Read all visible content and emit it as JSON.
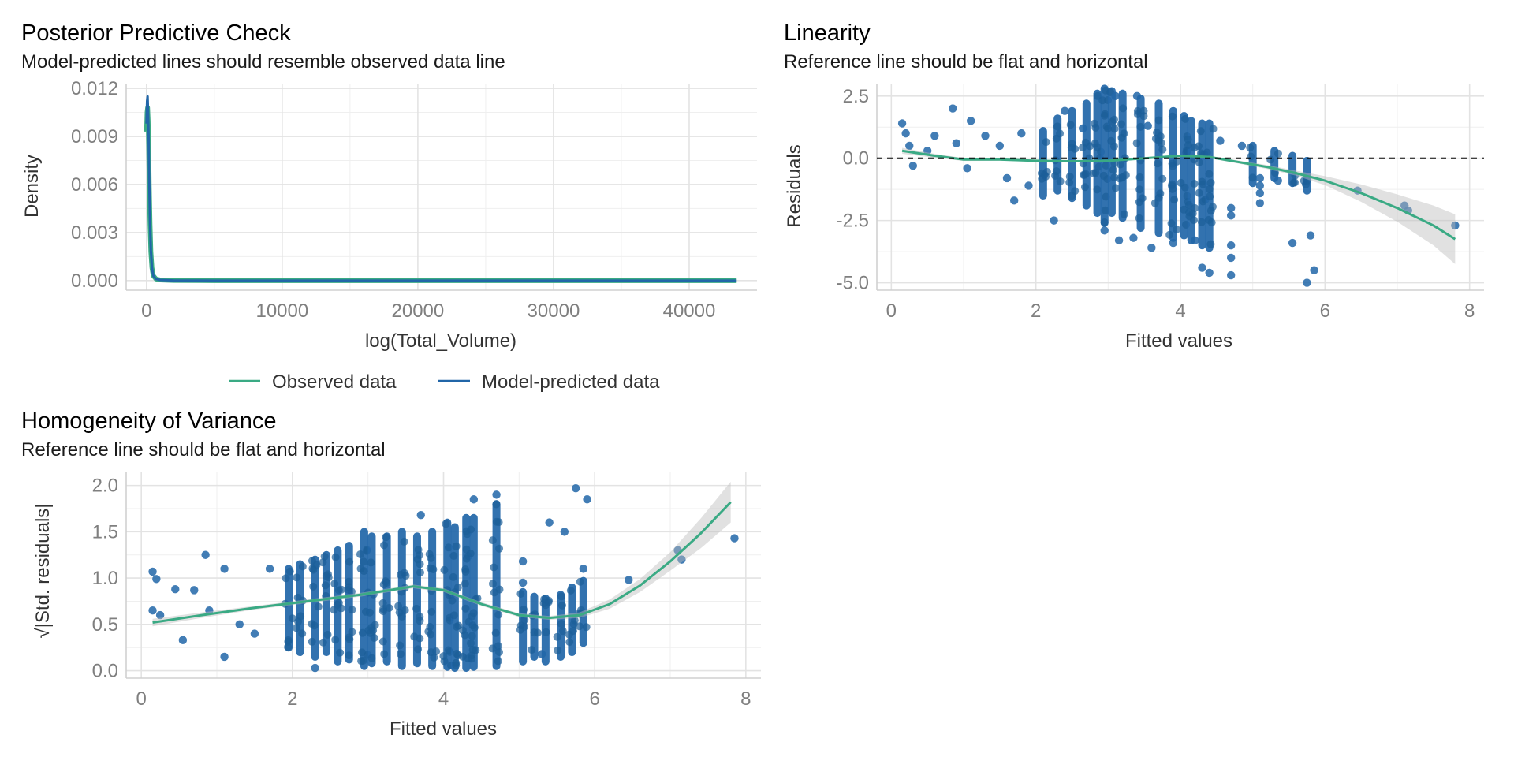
{
  "colors": {
    "observed": "#3aaa84",
    "predicted": "#2166a8",
    "point": "#2166a8",
    "smooth": "#3aaa84",
    "band": "#bdbdbd",
    "reference": "#000000"
  },
  "chart_data": [
    {
      "id": "ppc",
      "type": "line",
      "title": "Posterior Predictive Check",
      "subtitle": "Model-predicted lines should resemble observed data line",
      "xlabel": "log(Total_Volume)",
      "ylabel": "Density",
      "xlim": [
        -1500,
        45000
      ],
      "ylim": [
        -0.0006,
        0.0123
      ],
      "xticks": [
        0,
        10000,
        20000,
        30000,
        40000
      ],
      "xtick_labels": [
        "0",
        "10000",
        "20000",
        "30000",
        "40000"
      ],
      "yticks": [
        0.0,
        0.003,
        0.006,
        0.009,
        0.012
      ],
      "ytick_labels": [
        "0.000",
        "0.003",
        "0.006",
        "0.009",
        "0.012"
      ],
      "grid": true,
      "legend": {
        "position": "bottom",
        "items": [
          {
            "label": "Observed data",
            "series": "observed"
          },
          {
            "label": "Model-predicted data",
            "series": "predicted"
          }
        ]
      },
      "series": [
        {
          "name": "Observed data",
          "color_key": "observed",
          "x": [
            0,
            40,
            80,
            120,
            160,
            200,
            260,
            320,
            400,
            500,
            700,
            1000,
            2000,
            5000,
            10000,
            20000,
            30000,
            43500
          ],
          "y": [
            0.0093,
            0.0105,
            0.0108,
            0.01,
            0.0085,
            0.006,
            0.0035,
            0.0018,
            0.0008,
            0.0003,
            0.0001,
            4e-05,
            1e-05,
            0.0,
            0.0,
            0.0,
            0.0,
            0.0
          ]
        },
        {
          "name": "Model-predicted data",
          "color_key": "predicted",
          "x": [
            0,
            40,
            80,
            120,
            160,
            200,
            260,
            320,
            400,
            500,
            700,
            1000,
            2000,
            5000,
            10000,
            20000,
            30000,
            43500
          ],
          "y": [
            0.0098,
            0.0112,
            0.0115,
            0.0104,
            0.0088,
            0.0062,
            0.0036,
            0.0019,
            0.0008,
            0.0003,
            0.0001,
            4e-05,
            1e-05,
            0.0,
            0.0,
            0.0,
            0.0,
            0.0
          ]
        }
      ]
    },
    {
      "id": "linearity",
      "type": "scatter",
      "title": "Linearity",
      "subtitle": "Reference line should be flat and horizontal",
      "xlabel": "Fitted values",
      "ylabel": "Residuals",
      "xlim": [
        -0.2,
        8.2
      ],
      "ylim": [
        -5.3,
        3.0
      ],
      "xticks": [
        0,
        2,
        4,
        6,
        8
      ],
      "xtick_labels": [
        "0",
        "2",
        "4",
        "6",
        "8"
      ],
      "yticks": [
        -5.0,
        -2.5,
        0.0,
        2.5
      ],
      "ytick_labels": [
        "-5.0",
        "-2.5",
        "0.0",
        "2.5"
      ],
      "grid": true,
      "reference_y": 0,
      "points": [
        {
          "x": 0.15,
          "y": 1.4
        },
        {
          "x": 0.2,
          "y": 1.0
        },
        {
          "x": 0.25,
          "y": 0.5
        },
        {
          "x": 0.3,
          "y": -0.3
        },
        {
          "x": 0.5,
          "y": 0.3
        },
        {
          "x": 0.6,
          "y": 0.9
        },
        {
          "x": 0.85,
          "y": 2.0
        },
        {
          "x": 0.9,
          "y": 0.6
        },
        {
          "x": 1.05,
          "y": -0.4
        },
        {
          "x": 1.1,
          "y": 1.5
        },
        {
          "x": 1.3,
          "y": 0.9
        },
        {
          "x": 1.5,
          "y": 0.5
        },
        {
          "x": 1.6,
          "y": -0.8
        },
        {
          "x": 1.7,
          "y": -1.7
        },
        {
          "x": 1.8,
          "y": 1.0
        },
        {
          "x": 1.9,
          "y": -1.1
        },
        {
          "x": 2.25,
          "y": -2.5
        },
        {
          "x": 2.95,
          "y": -2.9
        },
        {
          "x": 3.15,
          "y": -3.3
        },
        {
          "x": 3.35,
          "y": -3.2
        },
        {
          "x": 3.6,
          "y": -3.6
        },
        {
          "x": 3.9,
          "y": -3.4
        },
        {
          "x": 4.2,
          "y": -3.3
        },
        {
          "x": 4.3,
          "y": -4.4
        },
        {
          "x": 4.4,
          "y": -4.6
        },
        {
          "x": 4.7,
          "y": -4.7
        },
        {
          "x": 4.7,
          "y": -4.0
        },
        {
          "x": 4.7,
          "y": -3.5
        },
        {
          "x": 4.7,
          "y": -2.3
        },
        {
          "x": 4.7,
          "y": -2.0
        },
        {
          "x": 5.1,
          "y": -1.8
        },
        {
          "x": 5.1,
          "y": -1.4
        },
        {
          "x": 5.1,
          "y": -1.1
        },
        {
          "x": 5.1,
          "y": -0.8
        },
        {
          "x": 5.35,
          "y": -0.9
        },
        {
          "x": 5.55,
          "y": -3.4
        },
        {
          "x": 5.75,
          "y": -5.0
        },
        {
          "x": 5.8,
          "y": -3.1
        },
        {
          "x": 5.85,
          "y": -4.5
        },
        {
          "x": 6.45,
          "y": -1.3
        },
        {
          "x": 7.1,
          "y": -1.9
        },
        {
          "x": 7.15,
          "y": -2.1
        },
        {
          "x": 7.8,
          "y": -2.7
        },
        {
          "x": 2.4,
          "y": 1.9
        },
        {
          "x": 2.65,
          "y": 1.2
        },
        {
          "x": 3.1,
          "y": 2.5
        },
        {
          "x": 3.4,
          "y": 2.5
        },
        {
          "x": 3.55,
          "y": 1.3
        },
        {
          "x": 4.55,
          "y": 0.7
        },
        {
          "x": 4.85,
          "y": 0.5
        }
      ],
      "vertical_clusters": [
        {
          "x": 2.1,
          "ymin": -1.5,
          "ymax": 1.1
        },
        {
          "x": 2.3,
          "ymin": -1.3,
          "ymax": 1.6
        },
        {
          "x": 2.5,
          "ymin": -1.6,
          "ymax": 1.9
        },
        {
          "x": 2.7,
          "ymin": -1.9,
          "ymax": 2.2
        },
        {
          "x": 2.85,
          "ymin": -2.2,
          "ymax": 2.6
        },
        {
          "x": 2.95,
          "ymin": -2.6,
          "ymax": 2.8
        },
        {
          "x": 3.05,
          "ymin": -2.2,
          "ymax": 2.7
        },
        {
          "x": 3.2,
          "ymin": -2.4,
          "ymax": 2.6
        },
        {
          "x": 3.45,
          "ymin": -2.8,
          "ymax": 2.4
        },
        {
          "x": 3.7,
          "ymin": -3.0,
          "ymax": 2.2
        },
        {
          "x": 3.9,
          "ymin": -3.2,
          "ymax": 1.9
        },
        {
          "x": 4.05,
          "ymin": -3.1,
          "ymax": 1.7
        },
        {
          "x": 4.15,
          "ymin": -3.3,
          "ymax": 1.5
        },
        {
          "x": 4.3,
          "ymin": -3.5,
          "ymax": 1.4
        },
        {
          "x": 4.4,
          "ymin": -3.6,
          "ymax": 1.4
        },
        {
          "x": 5.0,
          "ymin": -1.0,
          "ymax": 0.5
        },
        {
          "x": 5.3,
          "ymin": -0.8,
          "ymax": 0.3
        },
        {
          "x": 5.55,
          "ymin": -1.0,
          "ymax": 0.1
        },
        {
          "x": 5.75,
          "ymin": -1.3,
          "ymax": -0.1
        }
      ],
      "smooth": {
        "x": [
          0.15,
          0.6,
          1.0,
          1.5,
          2.0,
          2.5,
          3.0,
          3.5,
          4.0,
          4.4,
          4.8,
          5.2,
          5.6,
          6.0,
          6.5,
          7.0,
          7.5,
          7.8
        ],
        "y": [
          0.3,
          0.1,
          -0.05,
          -0.05,
          -0.1,
          -0.12,
          -0.1,
          0.0,
          0.1,
          0.05,
          -0.15,
          -0.35,
          -0.6,
          -0.9,
          -1.4,
          -2.0,
          -2.7,
          -3.25
        ],
        "se": [
          0.12,
          0.08,
          0.06,
          0.05,
          0.04,
          0.04,
          0.04,
          0.04,
          0.04,
          0.05,
          0.06,
          0.08,
          0.1,
          0.18,
          0.35,
          0.55,
          0.8,
          1.0
        ]
      }
    },
    {
      "id": "homogeneity",
      "type": "scatter",
      "title": "Homogeneity of Variance",
      "subtitle": "Reference line should be flat and horizontal",
      "xlabel": "Fitted values",
      "ylabel": "√|Std. residuals|",
      "xlim": [
        -0.2,
        8.2
      ],
      "ylim": [
        -0.08,
        2.15
      ],
      "xticks": [
        0,
        2,
        4,
        6,
        8
      ],
      "xtick_labels": [
        "0",
        "2",
        "4",
        "6",
        "8"
      ],
      "yticks": [
        0.0,
        0.5,
        1.0,
        1.5,
        2.0
      ],
      "ytick_labels": [
        "0.0",
        "0.5",
        "1.0",
        "1.5",
        "2.0"
      ],
      "grid": true,
      "points": [
        {
          "x": 0.15,
          "y": 1.07
        },
        {
          "x": 0.15,
          "y": 0.65
        },
        {
          "x": 0.2,
          "y": 0.99
        },
        {
          "x": 0.25,
          "y": 0.6
        },
        {
          "x": 0.45,
          "y": 0.88
        },
        {
          "x": 0.55,
          "y": 0.33
        },
        {
          "x": 0.7,
          "y": 0.87
        },
        {
          "x": 0.85,
          "y": 1.25
        },
        {
          "x": 0.9,
          "y": 0.65
        },
        {
          "x": 1.1,
          "y": 1.1
        },
        {
          "x": 1.1,
          "y": 0.15
        },
        {
          "x": 1.3,
          "y": 0.5
        },
        {
          "x": 1.5,
          "y": 0.4
        },
        {
          "x": 1.7,
          "y": 1.1
        },
        {
          "x": 2.3,
          "y": 0.03
        },
        {
          "x": 3.7,
          "y": 1.68
        },
        {
          "x": 4.4,
          "y": 1.85
        },
        {
          "x": 4.7,
          "y": 1.9
        },
        {
          "x": 5.3,
          "y": 0.18
        },
        {
          "x": 5.4,
          "y": 1.6
        },
        {
          "x": 5.6,
          "y": 1.5
        },
        {
          "x": 5.75,
          "y": 1.97
        },
        {
          "x": 5.9,
          "y": 1.85
        },
        {
          "x": 5.85,
          "y": 1.1
        },
        {
          "x": 5.05,
          "y": 0.95
        },
        {
          "x": 5.05,
          "y": 1.18
        },
        {
          "x": 6.45,
          "y": 0.98
        },
        {
          "x": 7.1,
          "y": 1.3
        },
        {
          "x": 7.15,
          "y": 1.2
        },
        {
          "x": 7.85,
          "y": 1.43
        }
      ],
      "vertical_clusters": [
        {
          "x": 1.95,
          "ymin": 0.25,
          "ymax": 1.1
        },
        {
          "x": 2.1,
          "ymin": 0.2,
          "ymax": 1.15
        },
        {
          "x": 2.3,
          "ymin": 0.15,
          "ymax": 1.2
        },
        {
          "x": 2.45,
          "ymin": 0.2,
          "ymax": 1.25
        },
        {
          "x": 2.6,
          "ymin": 0.1,
          "ymax": 1.3
        },
        {
          "x": 2.75,
          "ymin": 0.12,
          "ymax": 1.35
        },
        {
          "x": 2.95,
          "ymin": 0.05,
          "ymax": 1.5
        },
        {
          "x": 3.05,
          "ymin": 0.08,
          "ymax": 1.45
        },
        {
          "x": 3.25,
          "ymin": 0.1,
          "ymax": 1.45
        },
        {
          "x": 3.45,
          "ymin": 0.05,
          "ymax": 1.5
        },
        {
          "x": 3.65,
          "ymin": 0.08,
          "ymax": 1.45
        },
        {
          "x": 3.85,
          "ymin": 0.05,
          "ymax": 1.5
        },
        {
          "x": 4.05,
          "ymin": 0.04,
          "ymax": 1.6
        },
        {
          "x": 4.15,
          "ymin": 0.03,
          "ymax": 1.55
        },
        {
          "x": 4.3,
          "ymin": 0.03,
          "ymax": 1.65
        },
        {
          "x": 4.4,
          "ymin": 0.04,
          "ymax": 1.65
        },
        {
          "x": 4.7,
          "ymin": 0.05,
          "ymax": 1.8
        },
        {
          "x": 5.05,
          "ymin": 0.1,
          "ymax": 0.85
        },
        {
          "x": 5.2,
          "ymin": 0.15,
          "ymax": 0.8
        },
        {
          "x": 5.35,
          "ymin": 0.1,
          "ymax": 0.78
        },
        {
          "x": 5.55,
          "ymin": 0.15,
          "ymax": 0.82
        },
        {
          "x": 5.7,
          "ymin": 0.2,
          "ymax": 0.9
        },
        {
          "x": 5.85,
          "ymin": 0.3,
          "ymax": 0.97
        }
      ],
      "smooth": {
        "x": [
          0.15,
          0.8,
          1.5,
          2.2,
          2.9,
          3.6,
          4.0,
          4.5,
          5.0,
          5.4,
          5.8,
          6.2,
          6.6,
          7.0,
          7.4,
          7.8
        ],
        "y": [
          0.52,
          0.6,
          0.68,
          0.75,
          0.82,
          0.91,
          0.87,
          0.72,
          0.6,
          0.57,
          0.6,
          0.72,
          0.92,
          1.18,
          1.48,
          1.82
        ],
        "se": [
          0.04,
          0.03,
          0.02,
          0.02,
          0.02,
          0.02,
          0.02,
          0.02,
          0.02,
          0.02,
          0.03,
          0.05,
          0.07,
          0.1,
          0.16,
          0.22
        ]
      }
    }
  ]
}
